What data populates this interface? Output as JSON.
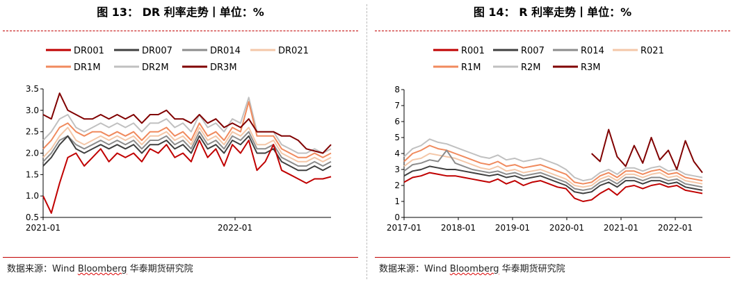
{
  "left": {
    "title": "图 13： DR 利率走势丨单位：%",
    "source": "数据来源：Wind Bloomberg 华泰期货研究院",
    "source_prefix": "数据来源：Wind ",
    "source_squig": "Bloomberg",
    "source_suffix": " 华泰期货研究院"
  },
  "right": {
    "title": "图 14： R 利率走势丨单位：%",
    "source": "数据来源：Wind Bloomberg 华泰期货研究院",
    "source_prefix": "数据来源：Wind ",
    "source_squig": "Bloomberg",
    "source_suffix": " 华泰期货研究院"
  },
  "chart_data": [
    {
      "type": "line",
      "title": "DR 利率走势",
      "unit": "%",
      "x_start": "2021-01",
      "x_end": "2022-07",
      "xticks": [
        "2021-01",
        "2022-01"
      ],
      "ylim": [
        0.5,
        3.5
      ],
      "yticks": [
        "0.5",
        "1.0",
        "1.5",
        "2.0",
        "2.5",
        "3.0",
        "3.5"
      ],
      "grid": false,
      "legend_position": "top",
      "series": [
        {
          "name": "DR001",
          "color": "#c00000",
          "values": [
            1.0,
            0.6,
            1.3,
            1.9,
            2.0,
            1.7,
            1.9,
            2.1,
            1.8,
            2.0,
            1.9,
            2.0,
            1.8,
            2.1,
            2.0,
            2.2,
            1.9,
            2.0,
            1.8,
            2.3,
            1.9,
            2.1,
            1.7,
            2.2,
            2.0,
            2.3,
            1.6,
            1.8,
            2.2,
            1.6,
            1.5,
            1.4,
            1.3,
            1.4,
            1.4,
            1.45
          ]
        },
        {
          "name": "DR007",
          "color": "#404040",
          "values": [
            1.7,
            1.9,
            2.2,
            2.4,
            2.1,
            2.0,
            2.1,
            2.2,
            2.1,
            2.2,
            2.1,
            2.2,
            2.0,
            2.2,
            2.2,
            2.3,
            2.1,
            2.2,
            2.0,
            2.4,
            2.1,
            2.2,
            2.0,
            2.3,
            2.2,
            2.4,
            2.0,
            2.0,
            2.1,
            1.8,
            1.7,
            1.6,
            1.6,
            1.7,
            1.6,
            1.7
          ]
        },
        {
          "name": "DR014",
          "color": "#8c8c8c",
          "values": [
            1.8,
            2.0,
            2.3,
            2.4,
            2.2,
            2.1,
            2.2,
            2.3,
            2.2,
            2.3,
            2.2,
            2.3,
            2.1,
            2.3,
            2.3,
            2.4,
            2.2,
            2.3,
            2.1,
            2.5,
            2.2,
            2.3,
            2.1,
            2.4,
            2.3,
            2.5,
            2.1,
            2.1,
            2.2,
            1.9,
            1.8,
            1.7,
            1.7,
            1.8,
            1.7,
            1.8
          ]
        },
        {
          "name": "DR021",
          "color": "#f4c7a8",
          "values": [
            1.9,
            2.1,
            2.4,
            2.6,
            2.3,
            2.2,
            2.3,
            2.4,
            2.3,
            2.4,
            2.3,
            2.4,
            2.2,
            2.4,
            2.4,
            2.5,
            2.3,
            2.4,
            2.2,
            2.6,
            2.3,
            2.4,
            2.2,
            2.5,
            2.4,
            2.6,
            2.2,
            2.2,
            2.3,
            2.0,
            1.9,
            1.8,
            1.8,
            1.9,
            1.8,
            1.9
          ]
        },
        {
          "name": "DR1M",
          "color": "#f08a5d",
          "values": [
            2.1,
            2.3,
            2.6,
            2.7,
            2.5,
            2.4,
            2.5,
            2.5,
            2.4,
            2.5,
            2.4,
            2.5,
            2.3,
            2.5,
            2.5,
            2.6,
            2.4,
            2.5,
            2.3,
            2.7,
            2.4,
            2.5,
            2.3,
            2.6,
            2.5,
            3.2,
            2.4,
            2.4,
            2.4,
            2.1,
            2.0,
            1.9,
            1.9,
            2.0,
            1.9,
            2.0
          ]
        },
        {
          "name": "DR2M",
          "color": "#c0c0c0",
          "values": [
            2.3,
            2.5,
            2.8,
            2.9,
            2.6,
            2.5,
            2.6,
            2.7,
            2.6,
            2.7,
            2.6,
            2.7,
            2.5,
            2.7,
            2.7,
            2.8,
            2.6,
            2.7,
            2.5,
            2.9,
            2.6,
            2.7,
            2.5,
            2.8,
            2.7,
            3.3,
            2.5,
            2.5,
            2.5,
            2.2,
            2.1,
            2.0,
            2.0,
            2.1,
            2.0,
            2.1
          ]
        },
        {
          "name": "DR3M",
          "color": "#800000",
          "values": [
            2.9,
            2.8,
            3.4,
            3.0,
            2.9,
            2.8,
            2.8,
            2.9,
            2.8,
            2.9,
            2.8,
            2.9,
            2.7,
            2.9,
            2.9,
            3.0,
            2.8,
            2.8,
            2.7,
            2.9,
            2.7,
            2.8,
            2.6,
            2.7,
            2.6,
            2.8,
            2.5,
            2.5,
            2.5,
            2.4,
            2.4,
            2.3,
            2.1,
            2.05,
            2.0,
            2.2
          ]
        }
      ]
    },
    {
      "type": "line",
      "title": "R 利率走势",
      "unit": "%",
      "x_start": "2017-01",
      "x_end": "2022-07",
      "xticks": [
        "2017-01",
        "2018-01",
        "2019-01",
        "2020-01",
        "2021-01",
        "2022-01"
      ],
      "ylim": [
        0,
        8
      ],
      "yticks": [
        "0",
        "1",
        "2",
        "3",
        "4",
        "5",
        "6",
        "7",
        "8"
      ],
      "grid": false,
      "legend_position": "top",
      "series": [
        {
          "name": "R001",
          "color": "#c00000",
          "values": [
            2.2,
            2.5,
            2.6,
            2.8,
            2.7,
            2.6,
            2.6,
            2.5,
            2.4,
            2.3,
            2.2,
            2.4,
            2.1,
            2.3,
            2.0,
            2.2,
            2.3,
            2.1,
            1.9,
            1.8,
            1.2,
            1.0,
            1.1,
            1.5,
            1.8,
            1.4,
            1.9,
            2.0,
            1.8,
            2.0,
            2.1,
            1.9,
            2.0,
            1.7,
            1.6,
            1.5
          ]
        },
        {
          "name": "R007",
          "color": "#404040",
          "values": [
            2.6,
            2.9,
            3.0,
            3.2,
            3.1,
            3.0,
            3.0,
            2.9,
            2.8,
            2.7,
            2.6,
            2.7,
            2.5,
            2.6,
            2.4,
            2.5,
            2.6,
            2.4,
            2.2,
            2.0,
            1.6,
            1.5,
            1.6,
            2.0,
            2.2,
            1.9,
            2.3,
            2.3,
            2.1,
            2.3,
            2.3,
            2.1,
            2.2,
            1.9,
            1.8,
            1.7
          ]
        },
        {
          "name": "R014",
          "color": "#8c8c8c",
          "values": [
            2.9,
            3.3,
            3.4,
            3.6,
            3.5,
            4.2,
            3.4,
            3.2,
            3.0,
            2.9,
            2.8,
            2.9,
            2.7,
            2.8,
            2.6,
            2.7,
            2.8,
            2.6,
            2.4,
            2.2,
            1.8,
            1.7,
            1.8,
            2.2,
            2.4,
            2.1,
            2.5,
            2.5,
            2.3,
            2.5,
            2.5,
            2.3,
            2.4,
            2.1,
            2.0,
            1.9
          ]
        },
        {
          "name": "R021",
          "color": "#f4c7a8",
          "values": [
            3.2,
            3.6,
            3.7,
            4.0,
            3.9,
            3.8,
            3.7,
            3.5,
            3.3,
            3.1,
            3.0,
            3.2,
            2.9,
            3.0,
            2.8,
            2.9,
            3.0,
            2.8,
            2.6,
            2.4,
            2.0,
            1.9,
            2.0,
            2.4,
            2.6,
            2.3,
            2.7,
            2.7,
            2.5,
            2.7,
            2.8,
            2.5,
            2.6,
            2.3,
            2.2,
            2.1
          ]
        },
        {
          "name": "R1M",
          "color": "#f08a5d",
          "values": [
            3.5,
            4.0,
            4.2,
            4.5,
            4.3,
            4.2,
            4.0,
            3.8,
            3.6,
            3.4,
            3.3,
            3.5,
            3.2,
            3.3,
            3.1,
            3.2,
            3.3,
            3.1,
            2.9,
            2.7,
            2.2,
            2.1,
            2.2,
            2.6,
            2.8,
            2.5,
            2.9,
            2.9,
            2.7,
            2.9,
            3.0,
            2.7,
            2.8,
            2.5,
            2.4,
            2.3
          ]
        },
        {
          "name": "R2M",
          "color": "#c0c0c0",
          "values": [
            3.8,
            4.3,
            4.5,
            4.9,
            4.7,
            4.6,
            4.4,
            4.2,
            4.0,
            3.8,
            3.7,
            3.9,
            3.6,
            3.7,
            3.5,
            3.6,
            3.7,
            3.5,
            3.3,
            3.0,
            2.5,
            2.3,
            2.4,
            2.8,
            3.0,
            2.7,
            3.1,
            3.1,
            2.9,
            3.1,
            3.2,
            2.9,
            3.0,
            2.7,
            2.6,
            2.5
          ]
        },
        {
          "name": "R3M",
          "color": "#800000",
          "values": [
            null,
            null,
            null,
            null,
            null,
            null,
            null,
            null,
            null,
            null,
            null,
            null,
            null,
            null,
            null,
            null,
            null,
            null,
            null,
            null,
            null,
            null,
            4.0,
            3.5,
            5.5,
            3.8,
            3.2,
            4.5,
            3.4,
            5.0,
            3.6,
            4.2,
            3.0,
            4.8,
            3.5,
            2.8
          ]
        }
      ]
    }
  ]
}
